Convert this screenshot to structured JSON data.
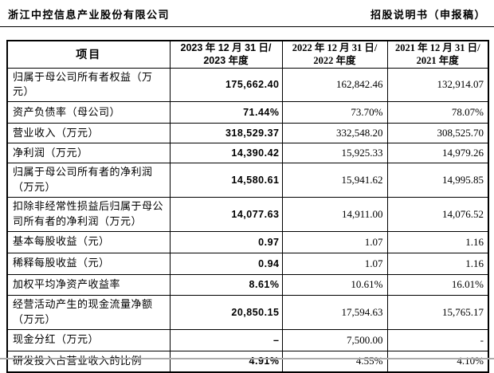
{
  "page_header": {
    "company_name": "浙江中控信息产业股份有限公司",
    "doc_title": "招股说明书（申报稿）"
  },
  "table": {
    "item_header": "项目",
    "period_headers": [
      {
        "line1": "2023 年 12 月 31 日/",
        "line2": "2023 年度"
      },
      {
        "line1": "2022 年 12 月 31 日/",
        "line2": "2022 年度"
      },
      {
        "line1": "2021 年 12 月 31 日/",
        "line2": "2021 年度"
      }
    ],
    "rows": [
      {
        "item": "归属于母公司所有者权益（万元）",
        "y2023": "175,662.40",
        "y2022": "162,842.46",
        "y2021": "132,914.07"
      },
      {
        "item": "资产负债率（母公司）",
        "y2023": "71.44%",
        "y2022": "73.70%",
        "y2021": "78.07%"
      },
      {
        "item": "营业收入（万元）",
        "y2023": "318,529.37",
        "y2022": "332,548.20",
        "y2021": "308,525.70"
      },
      {
        "item": "净利润（万元）",
        "y2023": "14,390.42",
        "y2022": "15,925.33",
        "y2021": "14,979.26"
      },
      {
        "item": "归属于母公司所有者的净利润（万元）",
        "y2023": "14,580.61",
        "y2022": "15,941.62",
        "y2021": "14,995.85"
      },
      {
        "item": "扣除非经常性损益后归属于母公司所有者的净利润（万元）",
        "y2023": "14,077.63",
        "y2022": "14,911.00",
        "y2021": "14,076.52"
      },
      {
        "item": "基本每股收益（元）",
        "y2023": "0.97",
        "y2022": "1.07",
        "y2021": "1.16"
      },
      {
        "item": "稀释每股收益（元）",
        "y2023": "0.94",
        "y2022": "1.07",
        "y2021": "1.16"
      },
      {
        "item": "加权平均净资产收益率",
        "y2023": "8.61%",
        "y2022": "10.61%",
        "y2021": "16.01%"
      },
      {
        "item": "经营活动产生的现金流量净额（万元）",
        "y2023": "20,850.15",
        "y2022": "17,594.63",
        "y2021": "15,765.17"
      },
      {
        "item": "现金分红（万元）",
        "y2023": "–",
        "y2022": "7,500.00",
        "y2021": "-"
      },
      {
        "item": "研发投入占营业收入的比例",
        "y2023": "4.91%",
        "y2022": "4.55%",
        "y2021": "4.10%"
      }
    ]
  },
  "colors": {
    "text": "#000000",
    "border": "#000000",
    "background": "#ffffff",
    "bottom_rule": "#ababab"
  }
}
